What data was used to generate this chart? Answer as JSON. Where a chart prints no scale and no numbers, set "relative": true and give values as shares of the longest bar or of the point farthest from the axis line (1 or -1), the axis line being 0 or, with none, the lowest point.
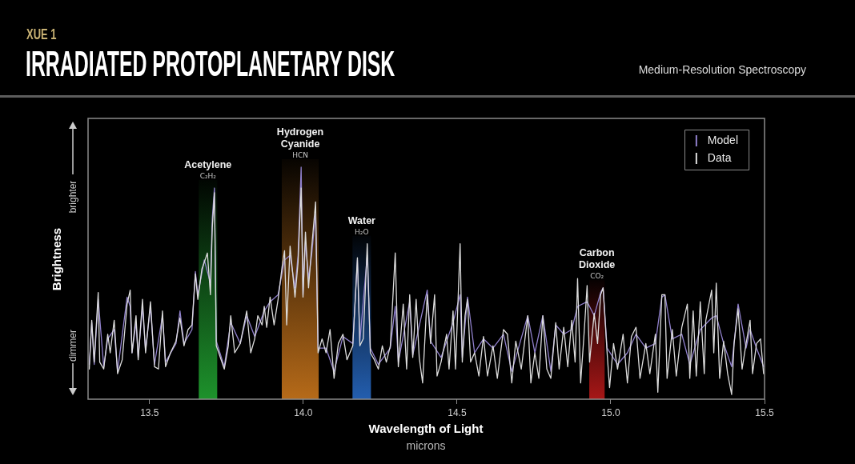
{
  "chart_data": {
    "type": "line",
    "title": "IRRADIATED PROTOPLANETARY DISK",
    "subtitle": "Medium-Resolution Spectroscopy",
    "xlabel": "Wavelength of Light\nmicrons",
    "ylabel": "Brightness",
    "annotations": [
      "XUE 1",
      "brighter",
      "dimmer"
    ],
    "relative": true,
    "xlim": [
      13.3,
      15.5
    ],
    "xticks": [
      13.5,
      {
        "value": 14,
        "label": "14.0"
      },
      14.5,
      {
        "value": 15,
        "label": "15.0"
      },
      15.5
    ],
    "legend": "top right",
    "bands": [
      {
        "axis": "x",
        "from": 13.66,
        "to": 13.72,
        "label": "Acetylene\nC₂H₂",
        "color": "#1f9a2e"
      },
      {
        "axis": "x",
        "from": 13.93,
        "to": 14.05,
        "label": "Hydrogen\nCyanide\nHCN",
        "color": "#c0701a"
      },
      {
        "axis": "x",
        "from": 14.16,
        "to": 14.22,
        "label": "Water\nH₂O",
        "color": "#2563b8"
      },
      {
        "axis": "x",
        "from": 14.93,
        "to": 14.98,
        "label": "Carbon\nDioxide\nCO₂",
        "color": "#b01818"
      }
    ],
    "series": [
      {
        "name": "Model",
        "color": "#9080cc",
        "x": [
          13.304,
          13.312,
          13.32,
          13.333,
          13.351,
          13.364,
          13.385,
          13.396,
          13.427,
          13.437,
          13.443,
          13.456,
          13.463,
          13.477,
          13.487,
          13.503,
          13.516,
          13.542,
          13.552,
          13.586,
          13.599,
          13.612,
          13.638,
          13.649,
          13.657,
          13.678,
          13.698,
          13.704,
          13.711,
          13.717,
          13.743,
          13.764,
          13.795,
          13.816,
          13.842,
          13.873,
          13.892,
          13.918,
          13.939,
          13.957,
          13.973,
          13.983,
          13.993,
          13.999,
          14.007,
          14.017,
          14.027,
          14.04,
          14.048,
          14.074,
          14.1,
          14.129,
          14.161,
          14.176,
          14.184,
          14.208,
          14.218,
          14.244,
          14.283,
          14.299,
          14.309,
          14.346,
          14.356,
          14.403,
          14.414,
          14.448,
          14.487,
          14.51,
          14.517,
          14.534,
          14.557,
          14.586,
          14.617,
          14.651,
          14.678,
          14.73,
          14.753,
          14.779,
          14.805,
          14.821,
          14.847,
          14.873,
          14.892,
          14.923,
          14.946,
          14.967,
          14.975,
          14.988,
          15.022,
          15.054,
          15.082,
          15.114,
          15.145,
          15.166,
          15.176,
          15.2,
          15.231,
          15.257,
          15.291,
          15.328,
          15.343,
          15.367,
          15.393,
          15.414,
          15.44,
          15.453,
          15.474,
          15.497
        ],
        "values": [
          0.15,
          0.33,
          0.15,
          0.43,
          0.14,
          0.26,
          0.3,
          0.12,
          0.44,
          0.4,
          0.2,
          0.33,
          0.18,
          0.4,
          0.21,
          0.4,
          0.15,
          0.36,
          0.16,
          0.24,
          0.38,
          0.24,
          0.3,
          0.55,
          0.45,
          0.6,
          0.5,
          0.78,
          0.91,
          0.25,
          0.14,
          0.33,
          0.24,
          0.36,
          0.27,
          0.38,
          0.42,
          0.45,
          0.6,
          0.62,
          0.48,
          0.62,
          1.0,
          0.45,
          0.68,
          0.52,
          0.62,
          0.8,
          0.22,
          0.22,
          0.12,
          0.27,
          0.24,
          0.6,
          0.25,
          0.62,
          0.22,
          0.15,
          0.22,
          0.4,
          0.16,
          0.42,
          0.19,
          0.47,
          0.25,
          0.18,
          0.33,
          0.45,
          0.18,
          0.44,
          0.2,
          0.26,
          0.22,
          0.28,
          0.12,
          0.36,
          0.2,
          0.36,
          0.12,
          0.32,
          0.28,
          0.3,
          0.4,
          0.42,
          0.36,
          0.46,
          0.48,
          0.22,
          0.15,
          0.2,
          0.28,
          0.22,
          0.24,
          0.44,
          0.45,
          0.26,
          0.28,
          0.15,
          0.3,
          0.35,
          0.36,
          0.24,
          0.14,
          0.41,
          0.22,
          0.3,
          0.22,
          0.14
        ]
      },
      {
        "name": "Data",
        "color": "#dcdcdc",
        "x": [
          13.304,
          13.312,
          13.32,
          13.333,
          13.338,
          13.351,
          13.364,
          13.372,
          13.385,
          13.396,
          13.411,
          13.427,
          13.437,
          13.443,
          13.456,
          13.463,
          13.477,
          13.487,
          13.503,
          13.516,
          13.529,
          13.542,
          13.552,
          13.568,
          13.586,
          13.599,
          13.612,
          13.625,
          13.638,
          13.649,
          13.657,
          13.67,
          13.678,
          13.688,
          13.698,
          13.704,
          13.711,
          13.717,
          13.725,
          13.743,
          13.756,
          13.764,
          13.777,
          13.795,
          13.816,
          13.829,
          13.842,
          13.852,
          13.866,
          13.873,
          13.881,
          13.892,
          13.905,
          13.918,
          13.931,
          13.939,
          13.946,
          13.957,
          13.965,
          13.973,
          13.983,
          13.993,
          13.999,
          14.007,
          14.017,
          14.027,
          14.04,
          14.048,
          14.061,
          14.074,
          14.087,
          14.1,
          14.114,
          14.129,
          14.142,
          14.161,
          14.176,
          14.184,
          14.195,
          14.208,
          14.218,
          14.231,
          14.244,
          14.257,
          14.27,
          14.283,
          14.299,
          14.309,
          14.325,
          14.336,
          14.346,
          14.356,
          14.367,
          14.377,
          14.388,
          14.403,
          14.414,
          14.427,
          14.435,
          14.448,
          14.466,
          14.474,
          14.487,
          14.495,
          14.51,
          14.517,
          14.526,
          14.534,
          14.544,
          14.557,
          14.571,
          14.586,
          14.599,
          14.617,
          14.631,
          14.651,
          14.664,
          14.678,
          14.691,
          14.709,
          14.73,
          14.74,
          14.753,
          14.766,
          14.779,
          14.792,
          14.805,
          14.821,
          14.832,
          14.847,
          14.86,
          14.873,
          14.884,
          14.892,
          14.902,
          14.913,
          14.923,
          14.931,
          14.946,
          14.957,
          14.967,
          14.975,
          14.988,
          14.996,
          15.009,
          15.022,
          15.04,
          15.054,
          15.067,
          15.082,
          15.095,
          15.114,
          15.127,
          15.145,
          15.153,
          15.166,
          15.176,
          15.183,
          15.2,
          15.213,
          15.231,
          15.249,
          15.257,
          15.268,
          15.278,
          15.291,
          15.304,
          15.309,
          15.328,
          15.335,
          15.343,
          15.354,
          15.367,
          15.38,
          15.393,
          15.401,
          15.414,
          15.427,
          15.44,
          15.453,
          15.461,
          15.474,
          15.487,
          15.497
        ],
        "values": [
          0.13,
          0.34,
          0.16,
          0.46,
          0.16,
          0.13,
          0.28,
          0.2,
          0.34,
          0.11,
          0.17,
          0.41,
          0.47,
          0.2,
          0.36,
          0.17,
          0.43,
          0.2,
          0.42,
          0.14,
          0.13,
          0.38,
          0.14,
          0.2,
          0.25,
          0.35,
          0.23,
          0.3,
          0.32,
          0.54,
          0.43,
          0.56,
          0.59,
          0.63,
          0.45,
          0.74,
          0.89,
          0.23,
          0.2,
          0.13,
          0.23,
          0.36,
          0.2,
          0.24,
          0.38,
          0.2,
          0.26,
          0.36,
          0.32,
          0.4,
          0.31,
          0.44,
          0.32,
          0.43,
          0.57,
          0.64,
          0.32,
          0.66,
          0.55,
          0.44,
          0.59,
          0.91,
          0.44,
          0.72,
          0.48,
          0.65,
          0.85,
          0.2,
          0.26,
          0.2,
          0.3,
          0.09,
          0.24,
          0.28,
          0.17,
          0.23,
          0.61,
          0.23,
          0.26,
          0.67,
          0.2,
          0.17,
          0.13,
          0.23,
          0.16,
          0.23,
          0.63,
          0.14,
          0.41,
          0.13,
          0.45,
          0.18,
          0.43,
          0.18,
          0.07,
          0.45,
          0.24,
          0.45,
          0.1,
          0.16,
          0.28,
          0.13,
          0.38,
          0.13,
          0.67,
          0.16,
          0.36,
          0.43,
          0.16,
          0.2,
          0.1,
          0.27,
          0.1,
          0.23,
          0.09,
          0.3,
          0.28,
          0.07,
          0.25,
          0.13,
          0.36,
          0.07,
          0.2,
          0.09,
          0.36,
          0.13,
          0.09,
          0.33,
          0.13,
          0.31,
          0.14,
          0.34,
          0.16,
          0.52,
          0.07,
          0.28,
          0.49,
          0.16,
          0.37,
          0.24,
          0.45,
          0.48,
          0.2,
          0.05,
          0.24,
          0.13,
          0.28,
          0.07,
          0.27,
          0.31,
          0.09,
          0.24,
          0.11,
          0.28,
          0.03,
          0.45,
          0.45,
          0.09,
          0.3,
          0.1,
          0.31,
          0.41,
          0.09,
          0.38,
          0.1,
          0.42,
          0.11,
          0.34,
          0.47,
          0.2,
          0.5,
          0.09,
          0.25,
          0.11,
          0.02,
          0.24,
          0.39,
          0.13,
          0.24,
          0.34,
          0.11,
          0.24,
          0.26,
          0.11
        ]
      }
    ]
  }
}
